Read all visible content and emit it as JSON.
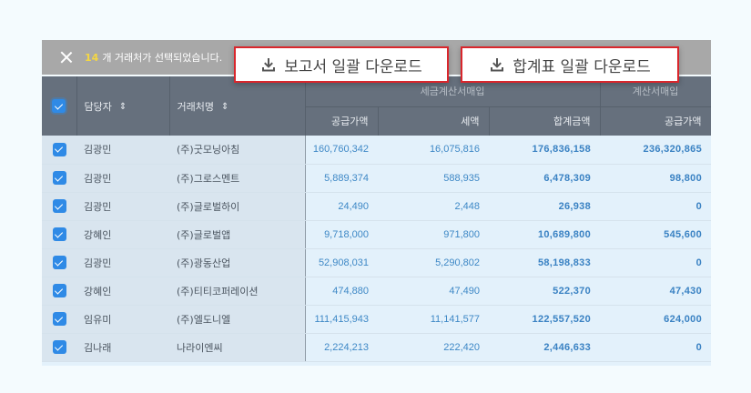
{
  "selection_bar": {
    "count": "14",
    "message": "개 거래처가 선택되었습니다.",
    "close_icon": "close-icon"
  },
  "buttons": {
    "report_download": {
      "label": "보고서 일괄 다운로드",
      "icon": "download-icon"
    },
    "summary_download": {
      "label": "합계표 일괄 다운로드",
      "icon": "download-icon"
    }
  },
  "table": {
    "headers": {
      "select_all_checked": true,
      "manager": "담당자",
      "vendor": "거래처명",
      "sort_icon": "sort-icon",
      "group_tax_invoice": "세금계산서매입",
      "group_invoice": "계산서매입",
      "supply_amount": "공급가액",
      "tax": "세액",
      "total": "합계금액",
      "supply_amount_2": "공급가액"
    },
    "rows": [
      {
        "checked": true,
        "manager": "김광민",
        "vendor": "(주)굿모닝아침",
        "supply": "160,760,342",
        "tax": "16,075,816",
        "total": "176,836,158",
        "supply2": "236,320,865"
      },
      {
        "checked": true,
        "manager": "김광민",
        "vendor": "(주)그로스멘트",
        "supply": "5,889,374",
        "tax": "588,935",
        "total": "6,478,309",
        "supply2": "98,800"
      },
      {
        "checked": true,
        "manager": "김광민",
        "vendor": "(주)글로벌하이",
        "supply": "24,490",
        "tax": "2,448",
        "total": "26,938",
        "supply2": "0"
      },
      {
        "checked": true,
        "manager": "강혜인",
        "vendor": "(주)글로벌앱",
        "supply": "9,718,000",
        "tax": "971,800",
        "total": "10,689,800",
        "supply2": "545,600"
      },
      {
        "checked": true,
        "manager": "김광민",
        "vendor": "(주)광동산업",
        "supply": "52,908,031",
        "tax": "5,290,802",
        "total": "58,198,833",
        "supply2": "0"
      },
      {
        "checked": true,
        "manager": "강혜인",
        "vendor": "(주)티티코퍼레이션",
        "supply": "474,880",
        "tax": "47,490",
        "total": "522,370",
        "supply2": "47,430"
      },
      {
        "checked": true,
        "manager": "임유미",
        "vendor": "(주)엘도니엘",
        "supply": "111,415,943",
        "tax": "11,141,577",
        "total": "122,557,520",
        "supply2": "624,000"
      },
      {
        "checked": true,
        "manager": "김나래",
        "vendor": "나라이엔씨",
        "supply": "2,224,213",
        "tax": "222,420",
        "total": "2,446,633",
        "supply2": "0"
      }
    ]
  },
  "colors": {
    "accent_red": "#d9262c",
    "checkbox_blue": "#2f8ae6",
    "count_yellow": "#f5d742",
    "number_blue": "#3e88c6",
    "header_bg": "#66707d"
  }
}
